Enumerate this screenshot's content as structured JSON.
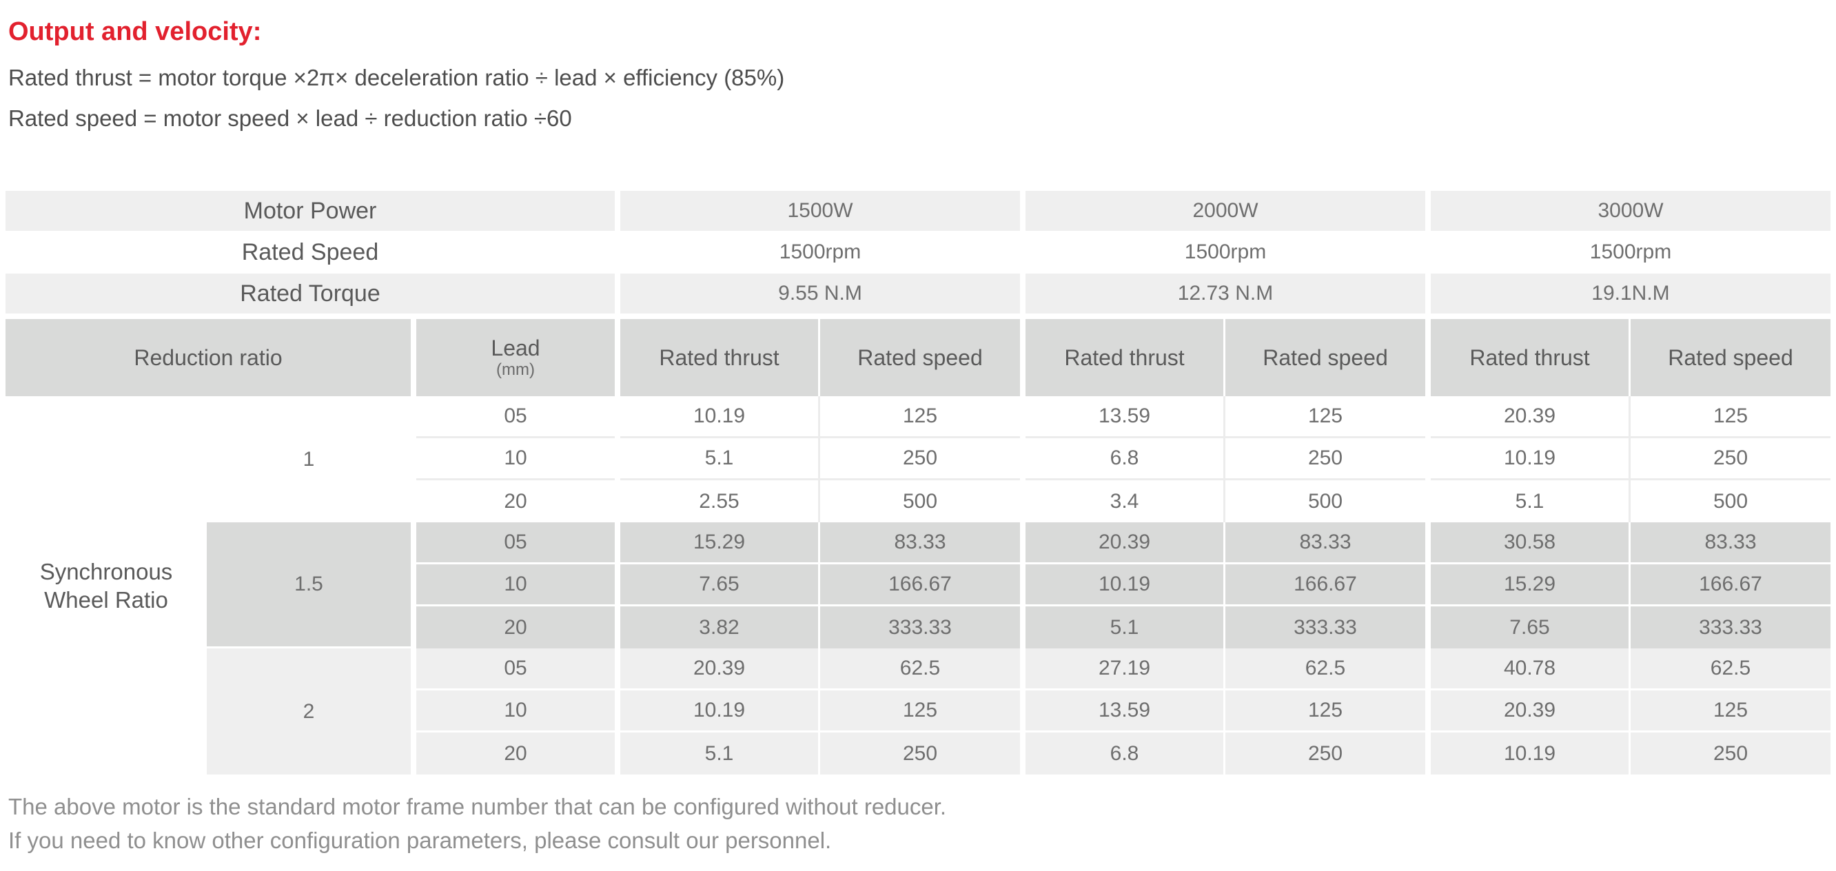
{
  "colors": {
    "title_red": "#e2212e",
    "row_light_gray": "#efefef",
    "row_dark_gray": "#d9dad9",
    "body_text": "#6e6e6e",
    "note_text": "#8f8f8f"
  },
  "intro": {
    "title": "Output and velocity:",
    "formula_thrust": "Rated thrust = motor torque ×2π× deceleration ratio ÷ lead × efficiency (85%)",
    "formula_speed": "Rated speed = motor speed × lead ÷ reduction ratio ÷60"
  },
  "spec_table": {
    "motor_power": {
      "label": "Motor Power",
      "values": [
        "1500W",
        "2000W",
        "3000W"
      ]
    },
    "rated_speed": {
      "label": "Rated Speed",
      "values": [
        "1500rpm",
        "1500rpm",
        "1500rpm"
      ]
    },
    "rated_torque": {
      "label": "Rated Torque",
      "values": [
        "9.55 N.M",
        "12.73 N.M",
        "19.1N.M"
      ]
    },
    "header": {
      "reduction_ratio": "Reduction ratio",
      "lead": "Lead",
      "lead_unit": "(mm)",
      "rated_thrust": "Rated thrust",
      "rated_speed": "Rated speed"
    },
    "row_group_label": "Synchronous Wheel Ratio",
    "sections": [
      {
        "ratio": "1",
        "rows": [
          {
            "lead": "05",
            "values": [
              "10.19",
              "125",
              "13.59",
              "125",
              "20.39",
              "125"
            ]
          },
          {
            "lead": "10",
            "values": [
              "5.1",
              "250",
              "6.8",
              "250",
              "10.19",
              "250"
            ]
          },
          {
            "lead": "20",
            "values": [
              "2.55",
              "500",
              "3.4",
              "500",
              "5.1",
              "500"
            ]
          }
        ]
      },
      {
        "ratio": "1.5",
        "rows": [
          {
            "lead": "05",
            "values": [
              "15.29",
              "83.33",
              "20.39",
              "83.33",
              "30.58",
              "83.33"
            ]
          },
          {
            "lead": "10",
            "values": [
              "7.65",
              "166.67",
              "10.19",
              "166.67",
              "15.29",
              "166.67"
            ]
          },
          {
            "lead": "20",
            "values": [
              "3.82",
              "333.33",
              "5.1",
              "333.33",
              "7.65",
              "333.33"
            ]
          }
        ]
      },
      {
        "ratio": "2",
        "rows": [
          {
            "lead": "05",
            "values": [
              "20.39",
              "62.5",
              "27.19",
              "62.5",
              "40.78",
              "62.5"
            ]
          },
          {
            "lead": "10",
            "values": [
              "10.19",
              "125",
              "13.59",
              "125",
              "20.39",
              "125"
            ]
          },
          {
            "lead": "20",
            "values": [
              "5.1",
              "250",
              "6.8",
              "250",
              "10.19",
              "250"
            ]
          }
        ]
      }
    ]
  },
  "footnotes": {
    "line1": "The above motor is the standard motor frame number that can be configured without reducer.",
    "line2": "If you need to know other configuration parameters, please consult our personnel."
  }
}
